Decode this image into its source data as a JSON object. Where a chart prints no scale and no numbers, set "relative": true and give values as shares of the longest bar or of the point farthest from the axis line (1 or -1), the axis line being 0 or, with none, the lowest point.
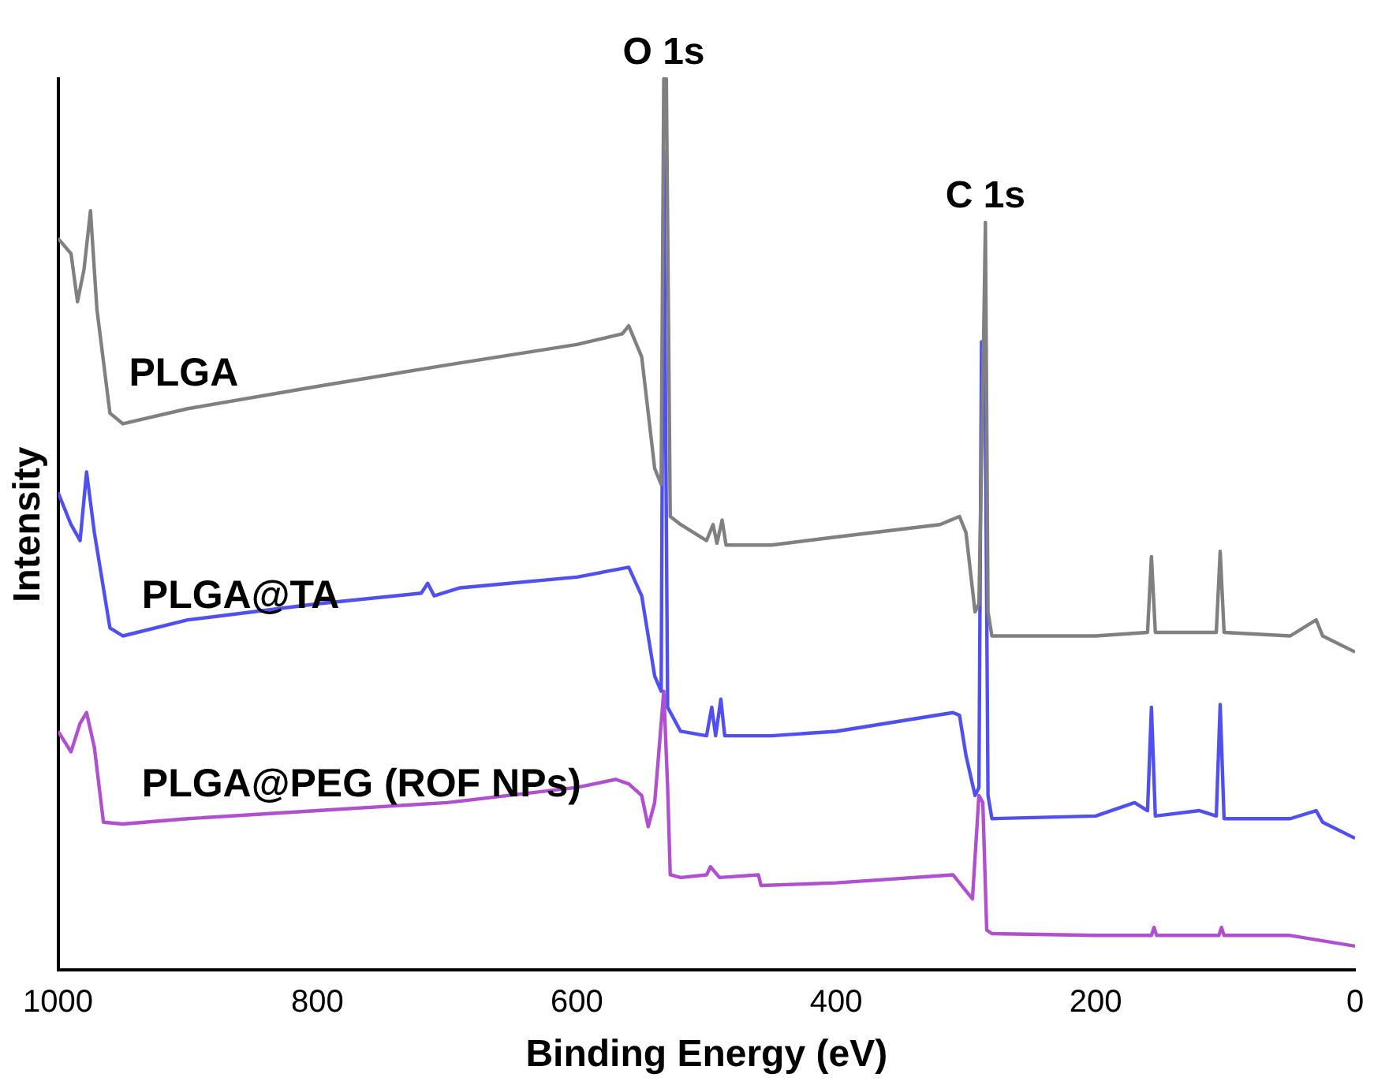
{
  "chart_data": {
    "type": "line",
    "xlabel": "Binding Energy (eV)",
    "ylabel": "Intensity",
    "relative": true,
    "xlim": [
      1000,
      0
    ],
    "xticks": [
      1000,
      800,
      600,
      400,
      200,
      0
    ],
    "grid": false,
    "legend": false,
    "marker": "none",
    "line_style": "solid",
    "annotations": [
      {
        "text": "O 1s",
        "x": 533,
        "y": 1.0
      },
      {
        "text": "C 1s",
        "x": 285,
        "y": 0.839
      }
    ],
    "series": [
      {
        "name": "PLGA",
        "color": "#808080",
        "x": [
          1000,
          990,
          985,
          980,
          975,
          970,
          960,
          950,
          900,
          800,
          700,
          600,
          565,
          560,
          550,
          540,
          535,
          533,
          531,
          528,
          520,
          500,
          495,
          492,
          488,
          485,
          450,
          400,
          320,
          305,
          300,
          293,
          290,
          287,
          285,
          283,
          280,
          200,
          160,
          157,
          154,
          107,
          104,
          101,
          50,
          30,
          25,
          0
        ],
        "values": [
          0.821,
          0.804,
          0.75,
          0.786,
          0.852,
          0.741,
          0.625,
          0.613,
          0.63,
          0.655,
          0.679,
          0.702,
          0.714,
          0.723,
          0.688,
          0.563,
          0.545,
          1.0,
          1.0,
          0.509,
          0.5,
          0.482,
          0.5,
          0.479,
          0.505,
          0.477,
          0.477,
          0.486,
          0.5,
          0.509,
          0.491,
          0.402,
          0.411,
          0.652,
          0.839,
          0.402,
          0.375,
          0.375,
          0.379,
          0.464,
          0.379,
          0.379,
          0.47,
          0.379,
          0.375,
          0.393,
          0.375,
          0.357
        ]
      },
      {
        "name": "PLGA@TA",
        "color": "#5050f0",
        "x": [
          1000,
          990,
          983,
          978,
          972,
          960,
          950,
          900,
          800,
          720,
          715,
          710,
          690,
          600,
          560,
          550,
          540,
          535,
          533,
          530,
          520,
          500,
          496,
          493,
          489,
          486,
          450,
          400,
          310,
          305,
          300,
          293,
          290,
          288,
          285,
          283,
          280,
          200,
          170,
          160,
          157,
          154,
          120,
          107,
          104,
          101,
          50,
          30,
          25,
          0
        ],
        "values": [
          0.536,
          0.5,
          0.482,
          0.559,
          0.491,
          0.384,
          0.375,
          0.393,
          0.411,
          0.423,
          0.434,
          0.42,
          0.429,
          0.441,
          0.452,
          0.42,
          0.33,
          0.313,
          0.92,
          0.295,
          0.268,
          0.263,
          0.295,
          0.263,
          0.304,
          0.263,
          0.263,
          0.268,
          0.289,
          0.286,
          0.241,
          0.196,
          0.205,
          0.705,
          0.616,
          0.196,
          0.17,
          0.173,
          0.188,
          0.179,
          0.295,
          0.173,
          0.179,
          0.173,
          0.298,
          0.17,
          0.17,
          0.179,
          0.166,
          0.148
        ]
      },
      {
        "name": "PLGA@PEG (ROF NPs)",
        "color": "#b050d0",
        "x": [
          1000,
          990,
          983,
          978,
          972,
          965,
          950,
          900,
          800,
          700,
          600,
          570,
          560,
          550,
          545,
          540,
          537,
          533,
          530,
          528,
          520,
          500,
          497,
          490,
          460,
          458,
          400,
          310,
          300,
          295,
          290,
          287,
          284,
          280,
          200,
          157,
          155,
          153,
          105,
          103,
          101,
          50,
          0
        ],
        "values": [
          0.268,
          0.245,
          0.277,
          0.289,
          0.25,
          0.166,
          0.164,
          0.17,
          0.179,
          0.188,
          0.205,
          0.214,
          0.209,
          0.196,
          0.161,
          0.188,
          0.241,
          0.313,
          0.205,
          0.107,
          0.104,
          0.107,
          0.116,
          0.104,
          0.107,
          0.095,
          0.098,
          0.107,
          0.089,
          0.08,
          0.196,
          0.188,
          0.045,
          0.041,
          0.039,
          0.039,
          0.048,
          0.039,
          0.039,
          0.048,
          0.039,
          0.039,
          0.027
        ]
      }
    ]
  }
}
